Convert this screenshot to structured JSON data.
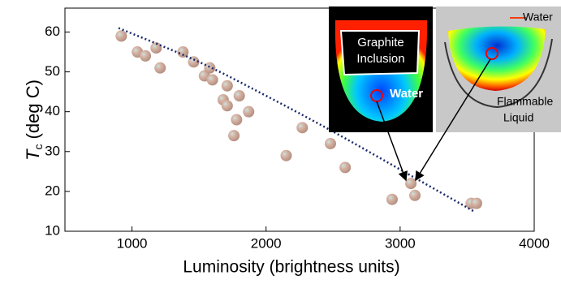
{
  "chart_data": {
    "type": "scatter",
    "xlabel": "Luminosity (brightness units)",
    "ylabel": {
      "symbol": "T",
      "subscript": "c",
      "unit": "(deg C)"
    },
    "x": [
      920,
      1040,
      1100,
      1180,
      1210,
      1380,
      1460,
      1540,
      1580,
      1600,
      1680,
      1710,
      1710,
      1760,
      1780,
      1800,
      1870,
      2150,
      2270,
      2480,
      2590,
      2940,
      3080,
      3110,
      3530,
      3570
    ],
    "values": [
      59,
      55,
      54,
      56,
      51,
      55,
      52.5,
      49,
      51,
      48,
      43,
      41.5,
      46.5,
      34,
      38,
      44,
      40,
      29,
      36,
      32,
      26,
      18,
      22,
      19,
      17,
      17
    ],
    "color": "#c8a494",
    "trendline": {
      "x": [
        900,
        1500,
        2000,
        2500,
        3000,
        3550
      ],
      "values": [
        61,
        52.5,
        44,
        35,
        25.5,
        15
      ],
      "color": "#1a2a6c"
    },
    "xlim": [
      500,
      4000
    ],
    "ylim": [
      10,
      66
    ],
    "xticks": [
      1000,
      2000,
      3000,
      4000
    ],
    "yticks": [
      10,
      20,
      30,
      40,
      50,
      60
    ],
    "insets": [
      {
        "labels": [
          [
            "Graphite",
            "Inclusion"
          ],
          [
            "Water"
          ]
        ]
      },
      {
        "labels": [
          [
            "Water"
          ],
          [
            "Flammable",
            "Liquid"
          ]
        ]
      }
    ]
  }
}
